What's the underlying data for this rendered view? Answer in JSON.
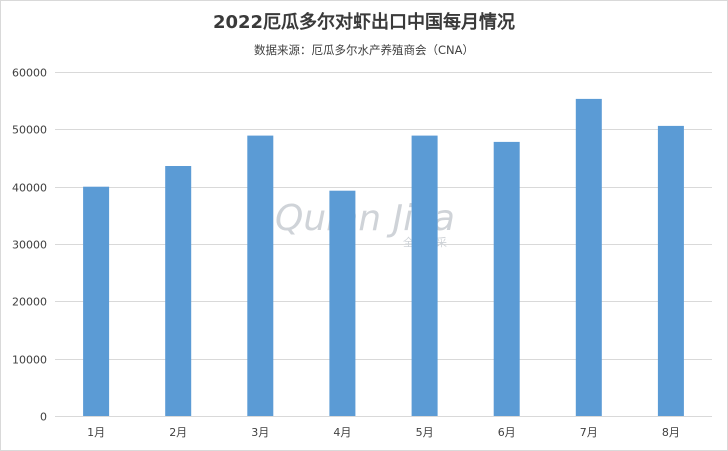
{
  "chart_data": {
    "type": "bar",
    "title": "2022厄瓜多尔对虾出口中国每月情况",
    "subtitle": "数据来源：厄瓜多尔水产养殖商会（CNA）",
    "categories": [
      "1月",
      "2月",
      "3月",
      "4月",
      "5月",
      "6月",
      "7月",
      "8月"
    ],
    "values": [
      40000,
      43600,
      48900,
      39300,
      48900,
      47800,
      55300,
      50600
    ],
    "ylim": [
      0,
      60000
    ],
    "yticks": [
      0,
      10000,
      20000,
      30000,
      40000,
      50000,
      60000
    ],
    "ytick_labels": [
      "0",
      "10000",
      "20000",
      "30000",
      "40000",
      "50000",
      "60000"
    ],
    "grid": true,
    "legend": "none",
    "bar_color": "#5b9bd5",
    "grid_color": "#d9d9d9"
  },
  "watermark": {
    "logo_text": "Qulan Jica",
    "caption": "全联集采"
  }
}
